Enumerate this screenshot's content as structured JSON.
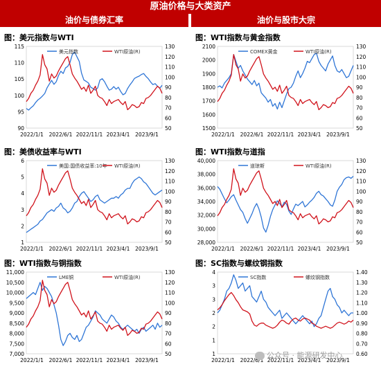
{
  "header": {
    "title": "原油价格与大类资产",
    "left_section": "油价与债券汇率",
    "right_section": "油价与股市大宗"
  },
  "watermark": "公众号 · 能源研发中心",
  "colors": {
    "header_bg": "#c00000",
    "blue": "#2e75d6",
    "red": "#d0121b"
  },
  "chart_data": [
    {
      "id": "dxy",
      "type": "line",
      "title": "图：美元指数与WTI",
      "xlabel": "",
      "ylabel": "",
      "x_ticks": [
        "2022/1/1",
        "2022/6/1",
        "2022/11/1",
        "2023/4/1",
        "2023/9/1"
      ],
      "left_axis": {
        "min": 90,
        "max": 115,
        "ticks": [
          90,
          95,
          100,
          105,
          110,
          115
        ]
      },
      "right_axis": {
        "min": 50,
        "max": 130,
        "ticks": [
          50,
          60,
          70,
          80,
          90,
          100,
          110,
          120,
          130
        ]
      },
      "series": [
        {
          "name": "美元指数",
          "axis": "left",
          "color": "#2e75d6",
          "values": [
            96,
            95.5,
            96.2,
            96.8,
            97.8,
            98.6,
            99.1,
            99.8,
            100.6,
            102.3,
            103.5,
            104.6,
            103.4,
            104.2,
            106.1,
            107.4,
            106.7,
            108.4,
            108.9,
            110.1,
            112.5,
            113.3,
            111.8,
            110.4,
            106.8,
            104.7,
            104.3,
            103.8,
            102.5,
            102.1,
            101.6,
            102.3,
            104.7,
            105.1,
            104.2,
            102.8,
            101.6,
            101.9,
            102.7,
            101.9,
            102.5,
            101.2,
            100.2,
            100.6,
            102.1,
            103.2,
            104.1,
            105.2,
            105.6,
            105.9,
            106.4,
            106.7,
            105.8,
            105.1,
            104.1,
            103.3,
            103.6,
            102.8,
            102.2,
            103.1
          ]
        },
        {
          "name": "WTI原油(R)",
          "axis": "right",
          "color": "#d0121b",
          "values": [
            76,
            79,
            84,
            87,
            92,
            96,
            102,
            122,
            112,
            108,
            96,
            103,
            99,
            101,
            106,
            110,
            114,
            118,
            120,
            112,
            103,
            99,
            96,
            92,
            88,
            90,
            86,
            92,
            84,
            87,
            91,
            82,
            80,
            79,
            76,
            72,
            78,
            74,
            76,
            77,
            78,
            75,
            73,
            76,
            68,
            70,
            73,
            72,
            70,
            71,
            75,
            74,
            79,
            80,
            82,
            85,
            88,
            91,
            89,
            84
          ]
        }
      ]
    },
    {
      "id": "gold",
      "type": "line",
      "title": "图：WTI指数与黄金指数",
      "xlabel": "",
      "ylabel": "",
      "x_ticks": [
        "2022/1/1",
        "2022/6/1",
        "2022/11/1",
        "2023/4/1",
        "2023/9/1"
      ],
      "left_axis": {
        "min": 1500,
        "max": 2100,
        "ticks": [
          1500,
          1600,
          1700,
          1800,
          1900,
          2000,
          2100
        ]
      },
      "right_axis": {
        "min": 50,
        "max": 130,
        "ticks": [
          50,
          60,
          70,
          80,
          90,
          100,
          110,
          120,
          130
        ]
      },
      "series": [
        {
          "name": "COMEX黄金",
          "axis": "left",
          "color": "#2e75d6",
          "values": [
            1800,
            1810,
            1795,
            1830,
            1850,
            1870,
            1900,
            2040,
            1990,
            1940,
            1960,
            1920,
            1890,
            1860,
            1840,
            1820,
            1850,
            1810,
            1830,
            1760,
            1740,
            1720,
            1690,
            1710,
            1660,
            1680,
            1640,
            1690,
            1650,
            1700,
            1750,
            1790,
            1800,
            1830,
            1880,
            1920,
            1870,
            1900,
            1940,
            1990,
            1980,
            2010,
            2040,
            2050,
            1990,
            1960,
            1940,
            1920,
            1970,
            2000,
            2030,
            1960,
            1920,
            1910,
            1930,
            1900,
            1870,
            1880,
            1920,
            1960
          ]
        },
        {
          "name": "WTI原油(R)",
          "axis": "right",
          "color": "#d0121b",
          "values": [
            76,
            79,
            84,
            87,
            92,
            96,
            102,
            122,
            112,
            108,
            96,
            103,
            99,
            101,
            106,
            110,
            114,
            118,
            120,
            112,
            103,
            99,
            96,
            92,
            88,
            90,
            86,
            92,
            84,
            87,
            91,
            82,
            80,
            79,
            76,
            72,
            78,
            74,
            76,
            77,
            78,
            75,
            73,
            76,
            68,
            70,
            73,
            72,
            70,
            71,
            75,
            74,
            79,
            80,
            82,
            85,
            88,
            91,
            89,
            84
          ]
        }
      ]
    },
    {
      "id": "ust",
      "type": "line",
      "title": "图：美债收益率与WTI",
      "xlabel": "",
      "ylabel": "",
      "x_ticks": [
        "2022/1/1",
        "2022/6/1",
        "2022/11/1",
        "2023/4/1",
        "2023/9/1"
      ],
      "left_axis": {
        "min": 1,
        "max": 6,
        "ticks": [
          1,
          2,
          3,
          4,
          5,
          6
        ]
      },
      "right_axis": {
        "min": 50,
        "max": 130,
        "ticks": [
          50,
          60,
          70,
          80,
          90,
          100,
          110,
          120,
          130
        ]
      },
      "series": [
        {
          "name": "美国:国债收益率:10年",
          "axis": "left",
          "color": "#2e75d6",
          "values": [
            1.6,
            1.7,
            1.8,
            1.9,
            2,
            2.1,
            2.3,
            2.4,
            2.6,
            2.8,
            2.9,
            3,
            2.9,
            3.1,
            3.2,
            3.4,
            3.1,
            3,
            2.8,
            2.9,
            3.1,
            3.4,
            3.5,
            3.8,
            4,
            4.1,
            3.9,
            3.7,
            3.5,
            3.6,
            3.8,
            3.9,
            3.6,
            3.5,
            3.4,
            3.5,
            3.6,
            3.7,
            3.7,
            3.8,
            3.7,
            3.9,
            4,
            4.2,
            4.3,
            4.3,
            4.6,
            4.8,
            4.9,
            5,
            4.9,
            4.7,
            4.6,
            4.4,
            4.2,
            4,
            3.9,
            4,
            4.1,
            4.2
          ]
        },
        {
          "name": "WTI原油(R)",
          "axis": "right",
          "color": "#d0121b",
          "values": [
            76,
            79,
            84,
            87,
            92,
            96,
            102,
            122,
            112,
            108,
            96,
            103,
            99,
            101,
            106,
            110,
            114,
            118,
            120,
            112,
            103,
            99,
            96,
            92,
            88,
            90,
            86,
            92,
            84,
            87,
            91,
            82,
            80,
            79,
            76,
            72,
            78,
            74,
            76,
            77,
            78,
            75,
            73,
            76,
            68,
            70,
            73,
            72,
            70,
            71,
            75,
            74,
            79,
            80,
            82,
            85,
            88,
            91,
            89,
            84
          ]
        }
      ]
    },
    {
      "id": "dji",
      "type": "line",
      "title": "图：WTI指数与道指",
      "xlabel": "",
      "ylabel": "",
      "x_ticks": [
        "2022/1/1",
        "2022/6/1",
        "2022/11/1",
        "2023/4/1",
        "2023/9/1"
      ],
      "left_axis": {
        "min": 28000,
        "max": 40000,
        "ticks": [
          28000,
          30000,
          32000,
          34000,
          36000,
          38000,
          40000
        ],
        "labels": [
          "28,000",
          "30,000",
          "32,000",
          "34,000",
          "36,000",
          "38,000",
          "40,000"
        ]
      },
      "right_axis": {
        "min": 50,
        "max": 130,
        "ticks": [
          50,
          60,
          70,
          80,
          90,
          100,
          110,
          120,
          130
        ]
      },
      "series": [
        {
          "name": "道琼斯",
          "axis": "left",
          "color": "#2e75d6",
          "values": [
            36200,
            35800,
            35100,
            34400,
            33800,
            34200,
            34700,
            35000,
            34200,
            33500,
            32800,
            32400,
            31500,
            30800,
            31500,
            32200,
            33100,
            33700,
            32900,
            31700,
            30100,
            29500,
            30500,
            31800,
            32800,
            33500,
            34100,
            33700,
            33200,
            33900,
            33600,
            32600,
            32100,
            32900,
            33600,
            33400,
            33700,
            34000,
            33200,
            33500,
            33900,
            34200,
            34600,
            35200,
            35500,
            35000,
            34800,
            34400,
            34000,
            33500,
            33300,
            34200,
            35500,
            36100,
            36500,
            37200,
            37500,
            37600,
            37400,
            37700
          ]
        },
        {
          "name": "WTI原油(R)",
          "axis": "right",
          "color": "#d0121b",
          "values": [
            76,
            79,
            84,
            87,
            92,
            96,
            102,
            122,
            112,
            108,
            96,
            103,
            99,
            101,
            106,
            110,
            114,
            118,
            120,
            112,
            103,
            99,
            96,
            92,
            88,
            90,
            86,
            92,
            84,
            87,
            91,
            82,
            80,
            79,
            76,
            72,
            78,
            74,
            76,
            77,
            78,
            75,
            73,
            76,
            68,
            70,
            73,
            72,
            70,
            71,
            75,
            74,
            79,
            80,
            82,
            85,
            88,
            91,
            89,
            84
          ]
        }
      ]
    },
    {
      "id": "copper",
      "type": "line",
      "title": "图：WTI指数与铜指数",
      "xlabel": "",
      "ylabel": "",
      "x_ticks": [
        "2022/1/1",
        "2022/6/1",
        "2022/11/1",
        "2023/4/1",
        "2023/9/1"
      ],
      "left_axis": {
        "min": 7000,
        "max": 11000,
        "ticks": [
          7000,
          7500,
          8000,
          8500,
          9000,
          9500,
          10000,
          10500,
          11000
        ],
        "labels": [
          "7,000",
          "7,500",
          "8,000",
          "8,500",
          "9,000",
          "9,500",
          "10,000",
          "10,500",
          "11,000"
        ]
      },
      "right_axis": {
        "min": 50,
        "max": 130,
        "ticks": [
          50,
          60,
          70,
          80,
          90,
          100,
          110,
          120,
          130
        ]
      },
      "series": [
        {
          "name": "LME铜",
          "axis": "left",
          "color": "#2e75d6",
          "values": [
            9700,
            9800,
            9900,
            10000,
            9900,
            10200,
            10500,
            10100,
            10300,
            10200,
            10000,
            9800,
            9400,
            9000,
            8400,
            7700,
            7400,
            7600,
            7900,
            8000,
            7800,
            7700,
            7900,
            7600,
            7700,
            8000,
            8300,
            8400,
            8600,
            8800,
            9100,
            9000,
            8900,
            8700,
            8600,
            8500,
            8700,
            8900,
            8800,
            8600,
            8500,
            8300,
            8200,
            8300,
            8400,
            8300,
            8200,
            8100,
            8200,
            8000,
            8200,
            8300,
            8100,
            8200,
            8300,
            8400,
            8200,
            8500,
            8300,
            8400
          ]
        },
        {
          "name": "WTI原油(R)",
          "axis": "right",
          "color": "#d0121b",
          "values": [
            76,
            79,
            84,
            87,
            92,
            96,
            102,
            122,
            112,
            108,
            96,
            103,
            99,
            101,
            106,
            110,
            114,
            118,
            120,
            112,
            103,
            99,
            96,
            92,
            88,
            90,
            86,
            92,
            84,
            87,
            91,
            82,
            80,
            79,
            76,
            72,
            78,
            74,
            76,
            77,
            78,
            75,
            73,
            76,
            68,
            70,
            73,
            72,
            70,
            71,
            75,
            74,
            79,
            80,
            82,
            85,
            88,
            91,
            89,
            84
          ]
        }
      ]
    },
    {
      "id": "sc",
      "type": "line",
      "title": "图：SC指数与螺纹钢指数",
      "xlabel": "",
      "ylabel": "",
      "x_ticks": [
        "2022/1/1",
        "2022/6/1",
        "2022/11/1",
        "2023/4/1",
        "2023/9/1"
      ],
      "left_axis": {
        "min": 0.5,
        "max": 3.5,
        "ticks": [
          0.5,
          1,
          1.5,
          2,
          2.5,
          3,
          3.5
        ],
        "labels": [
          "1",
          "1",
          "2",
          "2",
          "3",
          "3",
          "4"
        ]
      },
      "right_axis": {
        "min": 0.6,
        "max": 1.4,
        "ticks": [
          0.6,
          0.7,
          0.8,
          0.9,
          1,
          1.1,
          1.2,
          1.3,
          1.4
        ],
        "labels": [
          "0.60",
          "0.70",
          "0.80",
          "0.90",
          "1.00",
          "1.10",
          "1.20",
          "1.30",
          "1.40"
        ]
      },
      "series": [
        {
          "name": "SC指数",
          "axis": "left",
          "color": "#2e75d6",
          "values": [
            2,
            2.1,
            2.3,
            2.5,
            2.8,
            2.9,
            3.1,
            3.4,
            3.2,
            2.9,
            3,
            3.1,
            2.8,
            2.9,
            3,
            2.6,
            2.5,
            2.4,
            2.6,
            2.8,
            2.5,
            2.4,
            2.2,
            2.1,
            2,
            1.9,
            2,
            2.1,
            1.8,
            1.9,
            2,
            1.9,
            1.8,
            1.7,
            1.6,
            1.7,
            1.8,
            1.9,
            1.8,
            1.7,
            1.6,
            1.7,
            1.5,
            1.6,
            1.8,
            1.9,
            2.2,
            2.5,
            2.8,
            2.9,
            2.6,
            2.5,
            2.3,
            2.2,
            2,
            2.1,
            2,
            1.9,
            2,
            2
          ]
        },
        {
          "name": "螺纹钢指数",
          "axis": "right",
          "color": "#d0121b",
          "values": [
            1.03,
            1.05,
            1.08,
            1.12,
            1.15,
            1.18,
            1.2,
            1.17,
            1.13,
            1.1,
            1.06,
            1.03,
            1.02,
            1.01,
            0.99,
            0.92,
            0.88,
            0.87,
            0.89,
            0.9,
            0.9,
            0.88,
            0.87,
            0.86,
            0.85,
            0.86,
            0.88,
            0.91,
            0.93,
            0.92,
            0.9,
            0.89,
            0.92,
            0.94,
            0.95,
            0.93,
            0.92,
            0.94,
            0.95,
            0.94,
            0.93,
            0.9,
            0.89,
            0.87,
            0.86,
            0.85,
            0.86,
            0.87,
            0.86,
            0.85,
            0.86,
            0.88,
            0.9,
            0.91,
            0.9,
            0.89,
            0.9,
            0.92,
            0.91,
            0.93
          ]
        }
      ]
    }
  ]
}
